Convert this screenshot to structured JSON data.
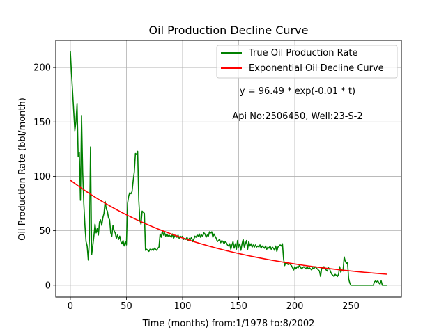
{
  "chart_data": {
    "type": "line",
    "title": "Oil Production Decline Curve",
    "xlabel": "Time (months) from:1/1978 to:8/2002",
    "ylabel": "Oil Production Rate (bbl/month)",
    "xlim": [
      -13,
      295
    ],
    "ylim": [
      -11,
      225
    ],
    "xticks": [
      0,
      50,
      100,
      150,
      200,
      250
    ],
    "yticks": [
      0,
      50,
      100,
      150,
      200
    ],
    "grid": true,
    "legend_position": "top-right",
    "annotations": [
      "y = 96.49 * exp(-0.01 * t)",
      "Api No:2506450, Well:23-S-2"
    ],
    "series": [
      {
        "name": "True Oil Production Rate",
        "color": "#008000",
        "points": [
          [
            0,
            215
          ],
          [
            1,
            195
          ],
          [
            2,
            178
          ],
          [
            3,
            160
          ],
          [
            4,
            142
          ],
          [
            5,
            150
          ],
          [
            6,
            167
          ],
          [
            7,
            118
          ],
          [
            8,
            122
          ],
          [
            9,
            78
          ],
          [
            10,
            156
          ],
          [
            11,
            105
          ],
          [
            12,
            75
          ],
          [
            13,
            55
          ],
          [
            14,
            40
          ],
          [
            15,
            36
          ],
          [
            16,
            23
          ],
          [
            17,
            42
          ],
          [
            18,
            127
          ],
          [
            19,
            28
          ],
          [
            20,
            36
          ],
          [
            21,
            45
          ],
          [
            22,
            56
          ],
          [
            23,
            48
          ],
          [
            24,
            52
          ],
          [
            25,
            46
          ],
          [
            26,
            58
          ],
          [
            27,
            60
          ],
          [
            28,
            55
          ],
          [
            29,
            62
          ],
          [
            30,
            66
          ],
          [
            31,
            77
          ],
          [
            32,
            70
          ],
          [
            33,
            68
          ],
          [
            34,
            62
          ],
          [
            35,
            60
          ],
          [
            36,
            48
          ],
          [
            37,
            45
          ],
          [
            38,
            55
          ],
          [
            39,
            50
          ],
          [
            40,
            48
          ],
          [
            41,
            43
          ],
          [
            42,
            46
          ],
          [
            43,
            42
          ],
          [
            44,
            45
          ],
          [
            45,
            40
          ],
          [
            46,
            38
          ],
          [
            47,
            41
          ],
          [
            48,
            36
          ],
          [
            49,
            40
          ],
          [
            50,
            37
          ],
          [
            51,
            75
          ],
          [
            52,
            82
          ],
          [
            53,
            85
          ],
          [
            54,
            84
          ],
          [
            55,
            86
          ],
          [
            56,
            96
          ],
          [
            57,
            104
          ],
          [
            58,
            121
          ],
          [
            59,
            120
          ],
          [
            60,
            123
          ],
          [
            61,
            78
          ],
          [
            62,
            60
          ],
          [
            63,
            56
          ],
          [
            64,
            68
          ],
          [
            65,
            67
          ],
          [
            66,
            66
          ],
          [
            67,
            32
          ],
          [
            68,
            33
          ],
          [
            69,
            32
          ],
          [
            70,
            31
          ],
          [
            71,
            33
          ],
          [
            72,
            32
          ],
          [
            73,
            33
          ],
          [
            74,
            32
          ],
          [
            75,
            34
          ],
          [
            76,
            33
          ],
          [
            77,
            32
          ],
          [
            78,
            34
          ],
          [
            79,
            35
          ],
          [
            80,
            47
          ],
          [
            81,
            44
          ],
          [
            82,
            50
          ],
          [
            83,
            46
          ],
          [
            84,
            48
          ],
          [
            85,
            45
          ],
          [
            86,
            47
          ],
          [
            87,
            45
          ],
          [
            88,
            46
          ],
          [
            89,
            45
          ],
          [
            90,
            44
          ],
          [
            91,
            47
          ],
          [
            92,
            43
          ],
          [
            93,
            45
          ],
          [
            94,
            46
          ],
          [
            95,
            44
          ],
          [
            96,
            46
          ],
          [
            97,
            43
          ],
          [
            98,
            45
          ],
          [
            99,
            44
          ],
          [
            100,
            45
          ],
          [
            101,
            42
          ],
          [
            102,
            43
          ],
          [
            103,
            42
          ],
          [
            104,
            44
          ],
          [
            105,
            41
          ],
          [
            106,
            43
          ],
          [
            107,
            42
          ],
          [
            108,
            44
          ],
          [
            109,
            40
          ],
          [
            110,
            42
          ],
          [
            111,
            45
          ],
          [
            112,
            44
          ],
          [
            113,
            46
          ],
          [
            114,
            45
          ],
          [
            115,
            47
          ],
          [
            116,
            44
          ],
          [
            117,
            46
          ],
          [
            118,
            45
          ],
          [
            119,
            48
          ],
          [
            120,
            47
          ],
          [
            121,
            44
          ],
          [
            122,
            46
          ],
          [
            123,
            45
          ],
          [
            124,
            49
          ],
          [
            125,
            48
          ],
          [
            126,
            49
          ],
          [
            127,
            44
          ],
          [
            128,
            47
          ],
          [
            129,
            45
          ],
          [
            130,
            43
          ],
          [
            131,
            40
          ],
          [
            132,
            41
          ],
          [
            133,
            42
          ],
          [
            134,
            39
          ],
          [
            135,
            41
          ],
          [
            136,
            40
          ],
          [
            137,
            38
          ],
          [
            138,
            40
          ],
          [
            139,
            39
          ],
          [
            140,
            37
          ],
          [
            141,
            36
          ],
          [
            142,
            38
          ],
          [
            143,
            33
          ],
          [
            144,
            37
          ],
          [
            145,
            40
          ],
          [
            146,
            34
          ],
          [
            147,
            38
          ],
          [
            148,
            33
          ],
          [
            149,
            41
          ],
          [
            150,
            35
          ],
          [
            151,
            38
          ],
          [
            152,
            32
          ],
          [
            153,
            38
          ],
          [
            154,
            42
          ],
          [
            155,
            35
          ],
          [
            156,
            38
          ],
          [
            157,
            41
          ],
          [
            158,
            33
          ],
          [
            159,
            40
          ],
          [
            160,
            36
          ],
          [
            161,
            38
          ],
          [
            162,
            35
          ],
          [
            163,
            37
          ],
          [
            164,
            35
          ],
          [
            165,
            37
          ],
          [
            166,
            35
          ],
          [
            167,
            36
          ],
          [
            168,
            35
          ],
          [
            169,
            37
          ],
          [
            170,
            34
          ],
          [
            171,
            36
          ],
          [
            172,
            35
          ],
          [
            173,
            34
          ],
          [
            174,
            36
          ],
          [
            175,
            33
          ],
          [
            176,
            35
          ],
          [
            177,
            34
          ],
          [
            178,
            36
          ],
          [
            179,
            33
          ],
          [
            180,
            35
          ],
          [
            181,
            34
          ],
          [
            182,
            32
          ],
          [
            183,
            36
          ],
          [
            184,
            31
          ],
          [
            185,
            35
          ],
          [
            186,
            36
          ],
          [
            187,
            37
          ],
          [
            188,
            36
          ],
          [
            189,
            38
          ],
          [
            190,
            24
          ],
          [
            191,
            18
          ],
          [
            192,
            21
          ],
          [
            193,
            20
          ],
          [
            194,
            19
          ],
          [
            195,
            20
          ],
          [
            196,
            19
          ],
          [
            197,
            18
          ],
          [
            198,
            16
          ],
          [
            199,
            14
          ],
          [
            200,
            17
          ],
          [
            201,
            15
          ],
          [
            202,
            17
          ],
          [
            203,
            16
          ],
          [
            204,
            18
          ],
          [
            205,
            17
          ],
          [
            206,
            15
          ],
          [
            207,
            16
          ],
          [
            208,
            17
          ],
          [
            209,
            16
          ],
          [
            210,
            15
          ],
          [
            211,
            17
          ],
          [
            212,
            15
          ],
          [
            213,
            16
          ],
          [
            214,
            15
          ],
          [
            215,
            14
          ],
          [
            216,
            16
          ],
          [
            217,
            15
          ],
          [
            218,
            17
          ],
          [
            219,
            16
          ],
          [
            220,
            15
          ],
          [
            221,
            14
          ],
          [
            222,
            13
          ],
          [
            223,
            8
          ],
          [
            224,
            16
          ],
          [
            225,
            15
          ],
          [
            226,
            17
          ],
          [
            227,
            15
          ],
          [
            228,
            14
          ],
          [
            229,
            13
          ],
          [
            230,
            16
          ],
          [
            231,
            15
          ],
          [
            232,
            12
          ],
          [
            233,
            10
          ],
          [
            234,
            9
          ],
          [
            235,
            8
          ],
          [
            236,
            10
          ],
          [
            237,
            9
          ],
          [
            238,
            8
          ],
          [
            239,
            10
          ],
          [
            240,
            17
          ],
          [
            241,
            12
          ],
          [
            242,
            14
          ],
          [
            243,
            13
          ],
          [
            244,
            26
          ],
          [
            245,
            22
          ],
          [
            246,
            20
          ],
          [
            247,
            21
          ],
          [
            248,
            6
          ],
          [
            249,
            2
          ],
          [
            250,
            0
          ],
          [
            255,
            0
          ],
          [
            260,
            0
          ],
          [
            265,
            0
          ],
          [
            270,
            0
          ],
          [
            271,
            3
          ],
          [
            272,
            4
          ],
          [
            273,
            3
          ],
          [
            274,
            4
          ],
          [
            275,
            2
          ],
          [
            276,
            1
          ],
          [
            277,
            4
          ],
          [
            278,
            0
          ],
          [
            282,
            0
          ]
        ]
      },
      {
        "name": "Exponential Oil Decline Curve",
        "color": "#ff0000",
        "formula": {
          "a": 96.49,
          "b": 0.008,
          "t_start": 0,
          "t_end": 282
        }
      }
    ]
  }
}
